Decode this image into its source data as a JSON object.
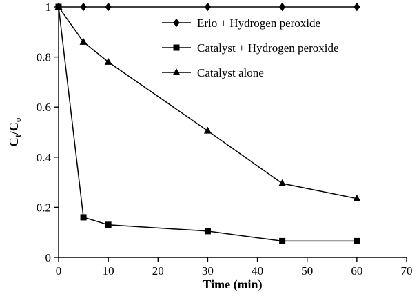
{
  "chart_data": {
    "type": "line",
    "title": "",
    "xlabel": "Time (min)",
    "ylabel": "Ct/Co",
    "ylabel_parts": [
      {
        "text": "C",
        "sub": false
      },
      {
        "text": "t",
        "sub": true
      },
      {
        "text": "/C",
        "sub": false
      },
      {
        "text": "o",
        "sub": true
      }
    ],
    "x": [
      0,
      5,
      10,
      30,
      45,
      60
    ],
    "series": [
      {
        "name": "Erio + Hydrogen peroxide",
        "marker": "diamond",
        "values": [
          1,
          1,
          1,
          1,
          1,
          1
        ]
      },
      {
        "name": "Catalyst + Hydrogen peroxide",
        "marker": "square",
        "values": [
          1,
          0.16,
          0.13,
          0.105,
          0.065,
          0.065
        ]
      },
      {
        "name": "Catalyst alone",
        "marker": "triangle",
        "values": [
          1,
          0.86,
          0.78,
          0.505,
          0.295,
          0.235
        ]
      }
    ],
    "xlim": [
      0,
      70
    ],
    "ylim": [
      0,
      1
    ],
    "xticks": [
      0,
      10,
      20,
      30,
      40,
      50,
      60,
      70
    ],
    "xtick_labels": [
      "0",
      "10",
      "20",
      "30",
      "40",
      "50",
      "60",
      "70"
    ],
    "yticks": [
      0,
      0.2,
      0.4,
      0.6,
      0.8,
      1
    ],
    "ytick_labels": [
      "0",
      "0.2",
      "0.4",
      "0.6",
      "0.8",
      "1"
    ],
    "legend_position": "inside-top-center",
    "grid": false,
    "line_color": "#000000",
    "marker_color": "#000000",
    "background_color": "#ffffff"
  }
}
